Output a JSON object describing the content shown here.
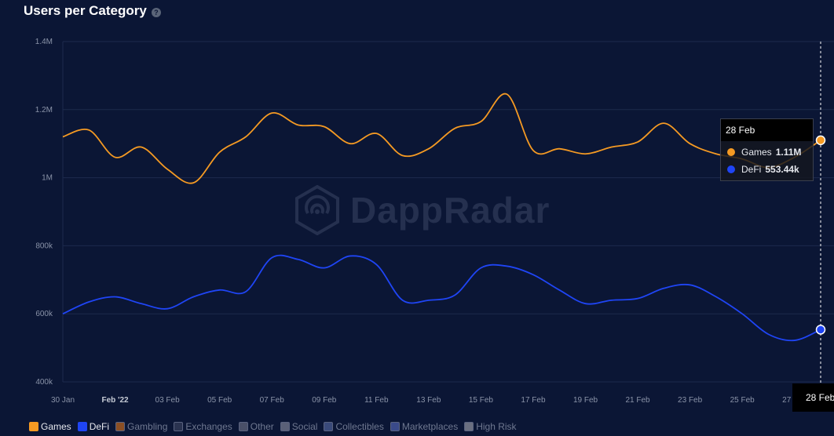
{
  "header": {
    "title": "Users per Category",
    "help_icon": "question-circle-icon"
  },
  "watermark": {
    "text": "DappRadar",
    "icon": "dappradar-logo-icon"
  },
  "tooltip": {
    "date": "28 Feb",
    "rows": [
      {
        "name": "Games",
        "value": "1.11M",
        "color": "#f59a23"
      },
      {
        "name": "DeFi",
        "value": "553.44k",
        "color": "#1f45f5"
      }
    ]
  },
  "crosshair_label": "28 Feb",
  "legend": [
    {
      "label": "Games",
      "color": "#f59a23",
      "active": true
    },
    {
      "label": "DeFi",
      "color": "#1f45f5",
      "active": true
    },
    {
      "label": "Gambling",
      "color": "#8b4f24",
      "active": false
    },
    {
      "label": "Exchanges",
      "color": "#2a3350",
      "active": false
    },
    {
      "label": "Other",
      "color": "#4a5068",
      "active": false
    },
    {
      "label": "Social",
      "color": "#5a6078",
      "active": false
    },
    {
      "label": "Collectibles",
      "color": "#3a4a7a",
      "active": false
    },
    {
      "label": "Marketplaces",
      "color": "#3a4a8a",
      "active": false
    },
    {
      "label": "High Risk",
      "color": "#6a6f80",
      "active": false
    }
  ],
  "chart_data": {
    "type": "line",
    "ylim": [
      400000,
      1400000
    ],
    "yticks": [
      {
        "value": 400000,
        "label": "400k"
      },
      {
        "value": 600000,
        "label": "600k"
      },
      {
        "value": 800000,
        "label": "800k"
      },
      {
        "value": 1000000,
        "label": "1M"
      },
      {
        "value": 1200000,
        "label": "1.2M"
      },
      {
        "value": 1400000,
        "label": "1.4M"
      }
    ],
    "x": [
      "30 Jan",
      "31 Jan",
      "Feb '22",
      "02 Feb",
      "03 Feb",
      "04 Feb",
      "05 Feb",
      "06 Feb",
      "07 Feb",
      "08 Feb",
      "09 Feb",
      "10 Feb",
      "11 Feb",
      "12 Feb",
      "13 Feb",
      "14 Feb",
      "15 Feb",
      "16 Feb",
      "17 Feb",
      "18 Feb",
      "19 Feb",
      "20 Feb",
      "21 Feb",
      "22 Feb",
      "23 Feb",
      "24 Feb",
      "25 Feb",
      "26 Feb",
      "27 Feb",
      "28 Feb"
    ],
    "xtick_labels": [
      {
        "index": 0,
        "label": "30 Jan",
        "bold": false
      },
      {
        "index": 2,
        "label": "Feb '22",
        "bold": true
      },
      {
        "index": 4,
        "label": "03 Feb",
        "bold": false
      },
      {
        "index": 6,
        "label": "05 Feb",
        "bold": false
      },
      {
        "index": 8,
        "label": "07 Feb",
        "bold": false
      },
      {
        "index": 10,
        "label": "09 Feb",
        "bold": false
      },
      {
        "index": 12,
        "label": "11 Feb",
        "bold": false
      },
      {
        "index": 14,
        "label": "13 Feb",
        "bold": false
      },
      {
        "index": 16,
        "label": "15 Feb",
        "bold": false
      },
      {
        "index": 18,
        "label": "17 Feb",
        "bold": false
      },
      {
        "index": 20,
        "label": "19 Feb",
        "bold": false
      },
      {
        "index": 22,
        "label": "21 Feb",
        "bold": false
      },
      {
        "index": 24,
        "label": "23 Feb",
        "bold": false
      },
      {
        "index": 26,
        "label": "25 Feb",
        "bold": false
      },
      {
        "index": 28,
        "label": "27 Feb",
        "bold": false
      }
    ],
    "series": [
      {
        "name": "Games",
        "color": "#f59a23",
        "values": [
          1120000,
          1140000,
          1060000,
          1090000,
          1025000,
          985000,
          1075000,
          1120000,
          1190000,
          1155000,
          1150000,
          1100000,
          1130000,
          1065000,
          1085000,
          1145000,
          1165000,
          1245000,
          1080000,
          1085000,
          1070000,
          1090000,
          1105000,
          1160000,
          1100000,
          1070000,
          1055000,
          1030000,
          1060000,
          1110000
        ]
      },
      {
        "name": "DeFi",
        "color": "#1f45f5",
        "values": [
          600000,
          635000,
          650000,
          630000,
          615000,
          650000,
          670000,
          665000,
          765000,
          760000,
          735000,
          770000,
          745000,
          640000,
          640000,
          655000,
          735000,
          740000,
          715000,
          670000,
          630000,
          640000,
          645000,
          675000,
          685000,
          650000,
          600000,
          540000,
          522000,
          553440
        ]
      }
    ]
  }
}
